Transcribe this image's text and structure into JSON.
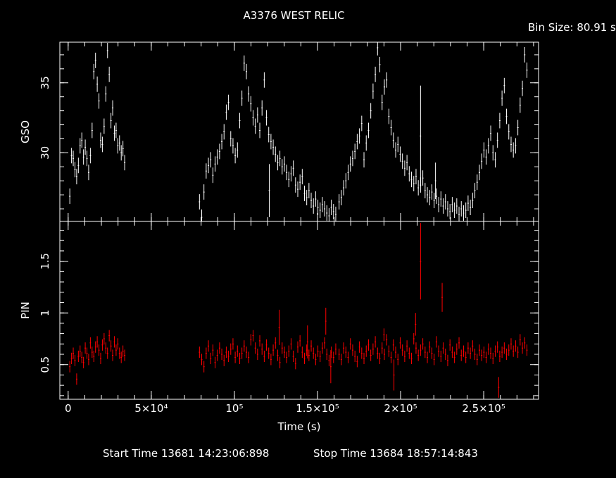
{
  "title": "A3376 WEST RELIC",
  "bin_size_label": "Bin Size: 80.91 s",
  "start_time_label": "Start Time 13681 14:23:06:898",
  "stop_time_label": "Stop Time 13684 18:57:14:843",
  "chart_data": [
    {
      "type": "scatter",
      "panel": "top",
      "ylabel": "GSO",
      "xlim": [
        -5000,
        283000
      ],
      "ylim": [
        25.1,
        37.9
      ],
      "y_ticks": [
        {
          "value": 30,
          "label": "30"
        },
        {
          "value": 35,
          "label": "35"
        }
      ],
      "color": "#ffffff",
      "series": [
        {
          "segments": [
            {
              "x0": 1000,
              "x1": 34000,
              "y": [
                26.9,
                29.8,
                29.6,
                28.8,
                28.3,
                29.1,
                30.5,
                30.9,
                29.7,
                30.4,
                29.6,
                28.6,
                29.8,
                31.6,
                35.8,
                36.6,
                34.9,
                33.7,
                30.9,
                30.6,
                31.9,
                34.2,
                37.3,
                35.6,
                32.3,
                33.2,
                31.4,
                31.6,
                30.5,
                30.7,
                30.0,
                30.3,
                29.3
              ]
            },
            {
              "x0": 79000,
              "x1": 161000,
              "y": [
                26.5,
                25.4,
                27.2,
                28.7,
                29.1,
                29.5,
                28.4,
                29.2,
                29.7,
                30.1,
                30.8,
                31.5,
                32.9,
                33.6,
                31.0,
                30.5,
                29.8,
                30.2,
                32.3,
                33.9,
                36.4,
                35.8,
                34.2,
                33.5,
                32.5,
                31.9,
                32.7,
                31.6,
                33.2,
                35.2,
                32.5,
                31.3,
                30.8,
                30.4,
                29.9,
                29.3,
                29.6,
                29.0,
                29.2,
                28.6,
                28.1,
                28.5,
                28.9,
                27.7,
                27.4,
                27.9,
                28.3,
                27.1,
                26.8,
                27.3,
                26.6,
                26.2,
                26.7,
                26.1,
                25.9,
                26.3,
                26.0,
                25.7,
                25.5,
                26.1,
                25.8,
                25.6
              ]
            },
            {
              "x0": 163000,
              "x1": 276000,
              "y": [
                26.5,
                26.8,
                27.5,
                28.0,
                28.6,
                29.2,
                29.6,
                30.1,
                30.8,
                31.2,
                32.1,
                29.5,
                30.7,
                31.6,
                33.0,
                34.4,
                35.6,
                37.5,
                36.3,
                33.6,
                34.7,
                35.2,
                32.6,
                31.8,
                30.9,
                30.2,
                30.6,
                29.9,
                29.4,
                28.9,
                29.3,
                28.5,
                28.1,
                27.8,
                28.3,
                27.5,
                27.7,
                28.2,
                27.3,
                27.0,
                26.8,
                27.2,
                26.6,
                26.9,
                26.3,
                26.7,
                26.2,
                26.5,
                26.0,
                25.8,
                26.3,
                25.9,
                26.2,
                25.6,
                26.0,
                25.7,
                25.9,
                26.4,
                26.1,
                26.6,
                27.3,
                27.9,
                28.6,
                29.4,
                30.2,
                29.7,
                30.5,
                31.4,
                30.0,
                29.5,
                30.9,
                32.3,
                33.9,
                34.8,
                32.6,
                31.5,
                30.6,
                30.2,
                30.5,
                31.8,
                33.4,
                34.6,
                37.0,
                35.9
              ]
            }
          ]
        },
        {
          "points": [
            {
              "x": 121000,
              "y": 27.3,
              "err": 1.9
            },
            {
              "x": 212000,
              "y": 31.2,
              "err": 3.6
            },
            {
              "x": 221000,
              "y": 28.0,
              "err": 1.3
            }
          ]
        }
      ]
    },
    {
      "type": "scatter",
      "panel": "bottom",
      "ylabel": "PIN",
      "xlabel": "Time (s)",
      "xlim": [
        -5000,
        283000
      ],
      "ylim": [
        0.165,
        1.885
      ],
      "x_ticks": [
        {
          "value": 0,
          "label": "0"
        },
        {
          "value": 50000,
          "label": "5×10⁴"
        },
        {
          "value": 100000,
          "label": "10⁵"
        },
        {
          "value": 150000,
          "label": "1.5×10⁵"
        },
        {
          "value": 200000,
          "label": "2×10⁵"
        },
        {
          "value": 250000,
          "label": "2.5×10⁵"
        }
      ],
      "y_ticks": [
        {
          "value": 0.5,
          "label": "0.5"
        },
        {
          "value": 1,
          "label": "1"
        },
        {
          "value": 1.5,
          "label": "1.5"
        }
      ],
      "color": "#ff0000",
      "series": [
        {
          "segments": [
            {
              "x0": 1000,
              "x1": 34000,
              "y": [
                0.48,
                0.56,
                0.61,
                0.54,
                0.36,
                0.58,
                0.63,
                0.57,
                0.52,
                0.66,
                0.61,
                0.55,
                0.71,
                0.62,
                0.58,
                0.67,
                0.72,
                0.64,
                0.56,
                0.69,
                0.75,
                0.66,
                0.61,
                0.78,
                0.68,
                0.59,
                0.72,
                0.64,
                0.7,
                0.61,
                0.57,
                0.63,
                0.59
              ]
            },
            {
              "x0": 79000,
              "x1": 161000,
              "y": [
                0.62,
                0.55,
                0.48,
                0.61,
                0.68,
                0.56,
                0.64,
                0.52,
                0.59,
                0.66,
                0.6,
                0.54,
                0.62,
                0.58,
                0.65,
                0.7,
                0.57,
                0.63,
                0.56,
                0.61,
                0.68,
                0.62,
                0.57,
                0.74,
                0.78,
                0.66,
                0.6,
                0.73,
                0.65,
                0.58,
                0.69,
                0.61,
                0.55,
                0.64,
                0.71,
                0.59,
                0.52,
                0.66,
                0.62,
                0.57,
                0.63,
                0.7,
                0.58,
                0.51,
                0.67,
                0.73,
                0.62,
                0.56,
                0.64,
                0.59,
                0.68,
                0.61,
                0.55,
                0.63,
                0.58,
                0.66,
                0.71,
                0.6,
                0.54,
                0.62,
                0.57,
                0.65
              ]
            },
            {
              "x0": 163000,
              "x1": 276000,
              "y": [
                0.6,
                0.55,
                0.66,
                0.62,
                0.57,
                0.7,
                0.64,
                0.58,
                0.53,
                0.67,
                0.61,
                0.56,
                0.63,
                0.69,
                0.59,
                0.65,
                0.72,
                0.61,
                0.56,
                0.66,
                0.6,
                0.74,
                0.63,
                0.57,
                0.69,
                0.62,
                0.55,
                0.71,
                0.64,
                0.58,
                0.68,
                0.61,
                0.56,
                0.75,
                0.66,
                0.59,
                0.64,
                0.7,
                0.62,
                0.57,
                0.67,
                0.61,
                0.55,
                0.72,
                0.63,
                0.58,
                0.66,
                0.6,
                0.54,
                0.69,
                0.62,
                0.57,
                0.65,
                0.71,
                0.59,
                0.63,
                0.57,
                0.66,
                0.61,
                0.68,
                0.6,
                0.55,
                0.64,
                0.59,
                0.62,
                0.57,
                0.65,
                0.61,
                0.56,
                0.63,
                0.67,
                0.58,
                0.62,
                0.66,
                0.6,
                0.64,
                0.7,
                0.63,
                0.68,
                0.62,
                0.74,
                0.66,
                0.71,
                0.64
              ]
            }
          ]
        },
        {
          "points": [
            {
              "x": 127000,
              "y": 0.86,
              "err": 0.17
            },
            {
              "x": 144000,
              "y": 0.72,
              "err": 0.16
            },
            {
              "x": 155000,
              "y": 0.92,
              "err": 0.13
            },
            {
              "x": 158000,
              "y": 0.48,
              "err": 0.16
            },
            {
              "x": 190000,
              "y": 0.79,
              "err": 0.06
            },
            {
              "x": 196000,
              "y": 0.4,
              "err": 0.15
            },
            {
              "x": 209000,
              "y": 0.89,
              "err": 0.11
            },
            {
              "x": 212000,
              "y": 1.5,
              "err": 0.37
            },
            {
              "x": 225000,
              "y": 1.15,
              "err": 0.14
            },
            {
              "x": 259000,
              "y": 0.28,
              "err": 0.1
            }
          ]
        }
      ]
    }
  ]
}
